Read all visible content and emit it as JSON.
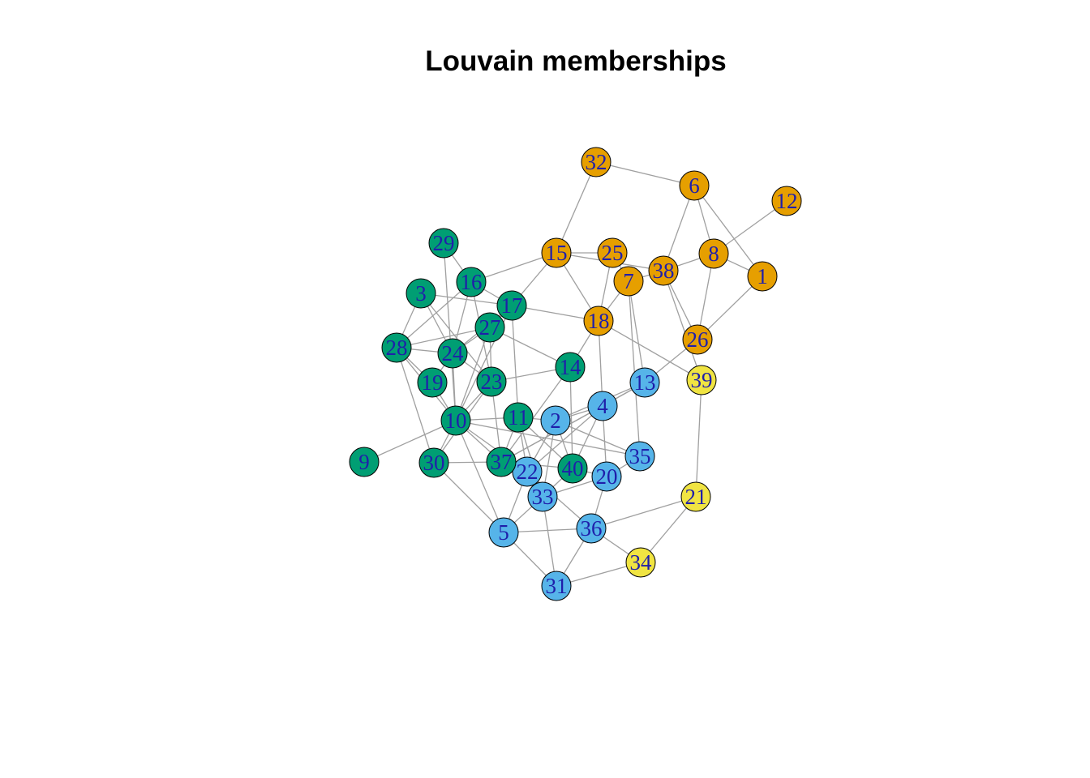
{
  "title": "Louvain memberships",
  "community_colors": {
    "orange": "#E69F00",
    "green": "#009E73",
    "blue": "#56B4E9",
    "yellow": "#F0E442"
  },
  "edge_color": "#a0a0a0",
  "label_color": "#1f1faa",
  "nodes": [
    {
      "id": "1",
      "community": "orange"
    },
    {
      "id": "2",
      "community": "blue"
    },
    {
      "id": "3",
      "community": "green"
    },
    {
      "id": "4",
      "community": "blue"
    },
    {
      "id": "5",
      "community": "blue"
    },
    {
      "id": "6",
      "community": "orange"
    },
    {
      "id": "7",
      "community": "orange"
    },
    {
      "id": "8",
      "community": "orange"
    },
    {
      "id": "9",
      "community": "green"
    },
    {
      "id": "10",
      "community": "green"
    },
    {
      "id": "11",
      "community": "green"
    },
    {
      "id": "12",
      "community": "orange"
    },
    {
      "id": "13",
      "community": "blue"
    },
    {
      "id": "14",
      "community": "green"
    },
    {
      "id": "15",
      "community": "orange"
    },
    {
      "id": "16",
      "community": "green"
    },
    {
      "id": "17",
      "community": "green"
    },
    {
      "id": "18",
      "community": "orange"
    },
    {
      "id": "19",
      "community": "green"
    },
    {
      "id": "20",
      "community": "blue"
    },
    {
      "id": "21",
      "community": "yellow"
    },
    {
      "id": "22",
      "community": "blue"
    },
    {
      "id": "23",
      "community": "green"
    },
    {
      "id": "24",
      "community": "green"
    },
    {
      "id": "25",
      "community": "orange"
    },
    {
      "id": "26",
      "community": "orange"
    },
    {
      "id": "27",
      "community": "green"
    },
    {
      "id": "28",
      "community": "green"
    },
    {
      "id": "29",
      "community": "green"
    },
    {
      "id": "30",
      "community": "green"
    },
    {
      "id": "31",
      "community": "blue"
    },
    {
      "id": "32",
      "community": "orange"
    },
    {
      "id": "33",
      "community": "blue"
    },
    {
      "id": "34",
      "community": "yellow"
    },
    {
      "id": "35",
      "community": "blue"
    },
    {
      "id": "36",
      "community": "blue"
    },
    {
      "id": "37",
      "community": "green"
    },
    {
      "id": "38",
      "community": "orange"
    },
    {
      "id": "39",
      "community": "yellow"
    },
    {
      "id": "40",
      "community": "green"
    }
  ],
  "edges": [
    [
      "32",
      "6"
    ],
    [
      "32",
      "15"
    ],
    [
      "6",
      "38"
    ],
    [
      "6",
      "8"
    ],
    [
      "6",
      "1"
    ],
    [
      "12",
      "8"
    ],
    [
      "8",
      "38"
    ],
    [
      "8",
      "1"
    ],
    [
      "8",
      "26"
    ],
    [
      "1",
      "26"
    ],
    [
      "38",
      "26"
    ],
    [
      "38",
      "7"
    ],
    [
      "38",
      "15"
    ],
    [
      "38",
      "39"
    ],
    [
      "25",
      "7"
    ],
    [
      "25",
      "18"
    ],
    [
      "15",
      "18"
    ],
    [
      "15",
      "16"
    ],
    [
      "15",
      "17"
    ],
    [
      "15",
      "25"
    ],
    [
      "7",
      "18"
    ],
    [
      "7",
      "13"
    ],
    [
      "7",
      "35"
    ],
    [
      "18",
      "4"
    ],
    [
      "18",
      "39"
    ],
    [
      "18",
      "17"
    ],
    [
      "18",
      "14"
    ],
    [
      "26",
      "13"
    ],
    [
      "39",
      "21"
    ],
    [
      "21",
      "34"
    ],
    [
      "21",
      "36"
    ],
    [
      "34",
      "31"
    ],
    [
      "34",
      "36"
    ],
    [
      "31",
      "5"
    ],
    [
      "31",
      "36"
    ],
    [
      "31",
      "33"
    ],
    [
      "5",
      "36"
    ],
    [
      "5",
      "22"
    ],
    [
      "5",
      "10"
    ],
    [
      "5",
      "33"
    ],
    [
      "36",
      "22"
    ],
    [
      "36",
      "20"
    ],
    [
      "33",
      "20"
    ],
    [
      "33",
      "2"
    ],
    [
      "33",
      "11"
    ],
    [
      "22",
      "4"
    ],
    [
      "22",
      "2"
    ],
    [
      "22",
      "11"
    ],
    [
      "4",
      "13"
    ],
    [
      "4",
      "2"
    ],
    [
      "4",
      "40"
    ],
    [
      "4",
      "20"
    ],
    [
      "4",
      "37"
    ],
    [
      "13",
      "2"
    ],
    [
      "13",
      "37"
    ],
    [
      "2",
      "35"
    ],
    [
      "2",
      "11"
    ],
    [
      "2",
      "40"
    ],
    [
      "35",
      "20"
    ],
    [
      "35",
      "10"
    ],
    [
      "14",
      "23"
    ],
    [
      "14",
      "40"
    ],
    [
      "14",
      "37"
    ],
    [
      "14",
      "27"
    ],
    [
      "17",
      "11"
    ],
    [
      "17",
      "27"
    ],
    [
      "17",
      "24"
    ],
    [
      "17",
      "10"
    ],
    [
      "17",
      "3"
    ],
    [
      "17",
      "16"
    ],
    [
      "16",
      "23"
    ],
    [
      "16",
      "28"
    ],
    [
      "16",
      "24"
    ],
    [
      "29",
      "16"
    ],
    [
      "29",
      "10"
    ],
    [
      "3",
      "28"
    ],
    [
      "3",
      "24"
    ],
    [
      "3",
      "23"
    ],
    [
      "28",
      "24"
    ],
    [
      "28",
      "27"
    ],
    [
      "28",
      "30"
    ],
    [
      "28",
      "19"
    ],
    [
      "28",
      "10"
    ],
    [
      "27",
      "23"
    ],
    [
      "27",
      "24"
    ],
    [
      "27",
      "10"
    ],
    [
      "24",
      "23"
    ],
    [
      "24",
      "10"
    ],
    [
      "24",
      "19"
    ],
    [
      "23",
      "10"
    ],
    [
      "23",
      "37"
    ],
    [
      "23",
      "30"
    ],
    [
      "19",
      "10"
    ],
    [
      "10",
      "11"
    ],
    [
      "10",
      "37"
    ],
    [
      "10",
      "9"
    ],
    [
      "10",
      "30"
    ],
    [
      "10",
      "22"
    ],
    [
      "11",
      "37"
    ],
    [
      "11",
      "40"
    ],
    [
      "30",
      "37"
    ],
    [
      "30",
      "5"
    ],
    [
      "37",
      "40"
    ],
    [
      "37",
      "22"
    ],
    [
      "40",
      "20"
    ],
    [
      "40",
      "33"
    ]
  ]
}
